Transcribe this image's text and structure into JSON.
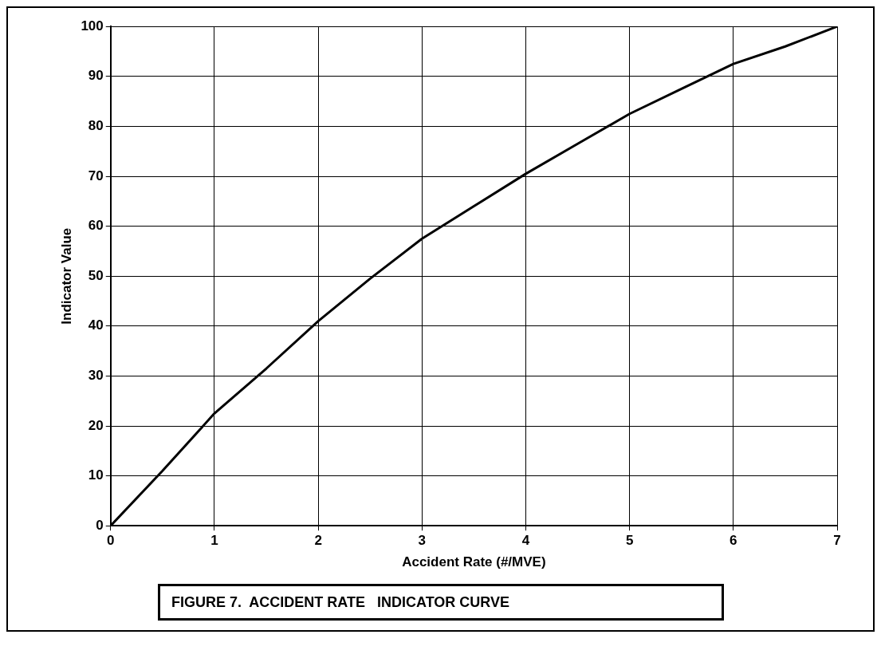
{
  "chart_data": {
    "type": "line",
    "title": "FIGURE 7.  ACCIDENT RATE   INDICATOR CURVE",
    "xlabel": "Accident Rate (#/MVE)",
    "ylabel": "Indicator Value",
    "x": [
      0,
      0.5,
      1,
      1.5,
      2,
      2.5,
      3,
      3.5,
      4,
      4.5,
      5,
      5.5,
      6,
      6.5,
      7
    ],
    "values": [
      0,
      11,
      22.5,
      31.5,
      41,
      49.5,
      57.5,
      64,
      70.5,
      76.5,
      82.5,
      87.5,
      92.5,
      96,
      100
    ],
    "color": "#000000",
    "marker": "none",
    "grid": true,
    "xlim": [
      0,
      7
    ],
    "xticks": [
      0,
      1,
      2,
      3,
      4,
      5,
      6,
      7
    ],
    "ylim": [
      0,
      100
    ],
    "yticks": [
      0,
      10,
      20,
      30,
      40,
      50,
      60,
      70,
      80,
      90,
      100
    ]
  }
}
